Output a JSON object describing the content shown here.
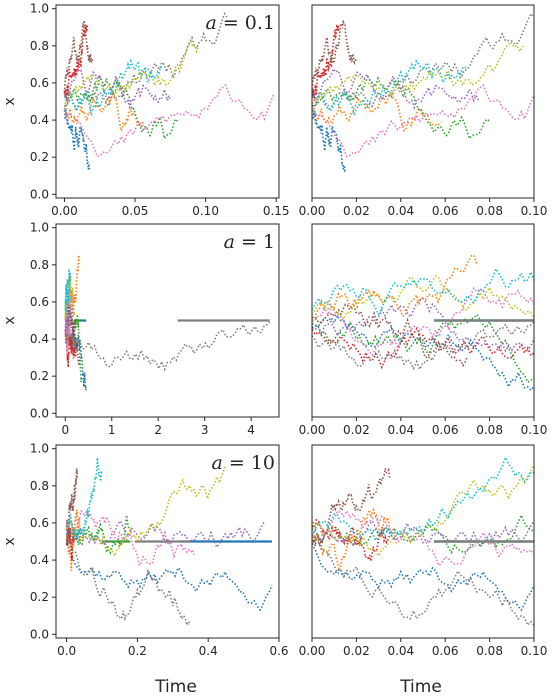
{
  "figure": {
    "xlabel": "Time",
    "ylabel": "x",
    "palette": [
      "#1f77b4",
      "#ff7f0e",
      "#2ca02c",
      "#d62728",
      "#9467bd",
      "#8c564b",
      "#e377c2",
      "#7f7f7f",
      "#bcbd22",
      "#17becf"
    ]
  },
  "chart_data": [
    {
      "type": "line",
      "panel": "row1-left",
      "annotation_var": "a",
      "annotation_value": "= 0.1",
      "xlim": [
        -0.006,
        0.152
      ],
      "ylim": [
        -0.02,
        1.02
      ],
      "xticks": [
        "0.00",
        "0.05",
        "0.10",
        "0.15"
      ],
      "xtick_values": [
        0,
        0.05,
        0.1,
        0.15
      ],
      "yticks": [
        "0.0",
        "0.2",
        "0.4",
        "0.6",
        "0.8",
        "1.0"
      ],
      "ytick_values": [
        0,
        0.2,
        0.4,
        0.6,
        0.8,
        1.0
      ],
      "ylabel": "x",
      "xlabel": "",
      "line_style": "dotted",
      "n_paths": 10,
      "path_end_x": [
        0.018,
        0.056,
        0.08,
        0.016,
        0.075,
        0.02,
        0.148,
        0.115,
        0.095,
        0.07
      ],
      "series_seed": 11
    },
    {
      "type": "line",
      "panel": "row1-right",
      "xlim": [
        0,
        0.1
      ],
      "ylim": [
        -0.02,
        1.02
      ],
      "xticks": [
        "0.00",
        "0.02",
        "0.04",
        "0.06",
        "0.08",
        "0.10"
      ],
      "xtick_values": [
        0,
        0.02,
        0.04,
        0.06,
        0.08,
        0.1
      ],
      "yticks": [],
      "ylabel": "",
      "xlabel": "",
      "line_style": "dotted",
      "n_paths": 10,
      "path_end_x": [
        0.015,
        0.058,
        0.08,
        0.012,
        0.075,
        0.02,
        0.1,
        0.1,
        0.095,
        0.07
      ],
      "series_seed": 11
    },
    {
      "type": "line",
      "panel": "row2-left",
      "annotation_var": "a",
      "annotation_value": "= 1",
      "xlim": [
        -0.2,
        4.6
      ],
      "ylim": [
        -0.02,
        1.02
      ],
      "xticks": [
        "0",
        "1",
        "2",
        "3",
        "4"
      ],
      "xtick_values": [
        0,
        1,
        2,
        3,
        4
      ],
      "yticks": [
        "0.0",
        "0.2",
        "0.4",
        "0.6",
        "0.8",
        "1.0"
      ],
      "ytick_values": [
        0,
        0.2,
        0.4,
        0.6,
        0.8,
        1.0
      ],
      "ylabel": "x",
      "xlabel": "",
      "line_style": "dotted",
      "absorbing_level": 0.5,
      "n_paths": 10,
      "path_end_x": [
        0.45,
        0.3,
        0.35,
        0.2,
        0.25,
        0.3,
        0.15,
        4.4,
        0.2,
        0.1
      ],
      "series_seed": 23
    },
    {
      "type": "line",
      "panel": "row2-right",
      "xlim": [
        0,
        0.1
      ],
      "ylim": [
        -0.02,
        1.02
      ],
      "xticks": [
        "0.00",
        "0.02",
        "0.04",
        "0.06",
        "0.08",
        "0.10"
      ],
      "xtick_values": [
        0,
        0.02,
        0.04,
        0.06,
        0.08,
        0.1
      ],
      "yticks": [],
      "ylabel": "",
      "xlabel": "",
      "line_style": "dotted",
      "absorbing_level": 0.5,
      "n_paths": 10,
      "path_end_x": [
        0.1,
        0.075,
        0.1,
        0.1,
        0.1,
        0.07,
        0.1,
        0.1,
        0.1,
        0.1
      ],
      "series_seed": 23
    },
    {
      "type": "line",
      "panel": "row3-left",
      "annotation_var": "a",
      "annotation_value": "= 10",
      "xlim": [
        -0.03,
        0.6
      ],
      "ylim": [
        -0.02,
        1.02
      ],
      "xticks": [
        "0.0",
        "0.2",
        "0.4",
        "0.6"
      ],
      "xtick_values": [
        0,
        0.2,
        0.4,
        0.6
      ],
      "yticks": [
        "0.0",
        "0.2",
        "0.4",
        "0.6",
        "0.8",
        "1.0"
      ],
      "ytick_values": [
        0,
        0.2,
        0.4,
        0.6,
        0.8,
        1.0
      ],
      "ylabel": "x",
      "xlabel": "Time",
      "line_style": "dotted",
      "absorbing_level": 0.5,
      "n_paths": 10,
      "path_end_x": [
        0.58,
        0.04,
        0.18,
        0.02,
        0.56,
        0.03,
        0.36,
        0.35,
        0.45,
        0.1
      ],
      "series_seed": 37
    },
    {
      "type": "line",
      "panel": "row3-right",
      "xlim": [
        0,
        0.1
      ],
      "ylim": [
        -0.02,
        1.02
      ],
      "xticks": [
        "0.00",
        "0.02",
        "0.04",
        "0.06",
        "0.08",
        "0.10"
      ],
      "xtick_values": [
        0,
        0.02,
        0.04,
        0.06,
        0.08,
        0.1
      ],
      "yticks": [],
      "ylabel": "",
      "xlabel": "Time",
      "line_style": "dotted",
      "absorbing_level": 0.5,
      "n_paths": 10,
      "path_end_x": [
        0.1,
        0.038,
        0.1,
        0.035,
        0.1,
        0.035,
        0.1,
        0.1,
        0.1,
        0.1
      ],
      "series_seed": 37
    }
  ]
}
